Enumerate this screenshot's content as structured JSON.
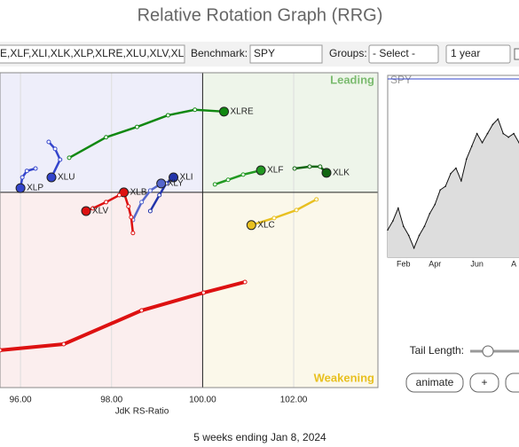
{
  "header": {
    "title": "Relative Rotation Graph (RRG)"
  },
  "toolbar": {
    "symbols": "E,XLF,XLI,XLK,XLP,XLRE,XLU,XLV,XL",
    "benchmark_label": "Benchmark:",
    "benchmark": "SPY",
    "groups_label": "Groups:",
    "groups": "- Select -",
    "period": "1 year"
  },
  "chart_data": [
    {
      "type": "rrg",
      "x_label": "JdK RS-Ratio",
      "quadrants": {
        "leading": "Leading",
        "weakening": "Weakening"
      },
      "xlim": [
        95.55,
        103.85
      ],
      "ylim": [
        93.62,
        103.91
      ],
      "xticks": [
        {
          "value": 96,
          "label": "96.00"
        },
        {
          "value": 98,
          "label": "98.00"
        },
        {
          "value": 100,
          "label": "100.00"
        },
        {
          "value": 102,
          "label": "102.00"
        }
      ],
      "series": [
        {
          "name": "XLRE",
          "color": "#118811",
          "x": [
            97.07,
            97.88,
            98.56,
            99.24,
            99.83,
            100.47
          ],
          "y": [
            101.13,
            101.8,
            102.14,
            102.52,
            102.7,
            102.64
          ]
        },
        {
          "name": "XLF",
          "color": "#229922",
          "x": [
            100.27,
            100.56,
            100.89,
            101.28
          ],
          "y": [
            100.26,
            100.41,
            100.58,
            100.72
          ]
        },
        {
          "name": "XLK",
          "color": "#116611",
          "x": [
            102.02,
            102.35,
            102.58,
            102.72
          ],
          "y": [
            100.78,
            100.84,
            100.84,
            100.64
          ]
        },
        {
          "name": "XLC",
          "color": "#e8c020",
          "x": [
            102.5,
            102.06,
            101.57,
            101.07
          ],
          "y": [
            99.77,
            99.42,
            99.16,
            98.93
          ]
        },
        {
          "name": "XLI",
          "color": "#2233aa",
          "x": [
            98.85,
            99.05,
            99.2,
            99.36
          ],
          "y": [
            99.39,
            99.91,
            100.29,
            100.49
          ]
        },
        {
          "name": "XLY",
          "color": "#5566cc",
          "x": [
            98.47,
            98.66,
            98.85,
            99.09
          ],
          "y": [
            99.1,
            99.68,
            100.06,
            100.29
          ]
        },
        {
          "name": "XLB",
          "color": "#dd1111",
          "x": [
            98.47,
            98.43,
            98.37,
            98.27
          ],
          "y": [
            98.67,
            99.19,
            99.54,
            100
          ]
        },
        {
          "name": "XLV",
          "color": "#dd1111",
          "x": [
            98.17,
            97.88,
            97.59,
            97.44
          ],
          "y": [
            99.91,
            99.68,
            99.48,
            99.39
          ]
        },
        {
          "name": "XLU",
          "color": "#3344cc",
          "x": [
            96.62,
            96.76,
            96.87,
            96.68
          ],
          "y": [
            101.65,
            101.42,
            101.07,
            100.49
          ]
        },
        {
          "name": "XLP",
          "color": "#3344cc",
          "x": [
            96.33,
            96.14,
            96.04,
            96
          ],
          "y": [
            100.78,
            100.7,
            100.49,
            100.14
          ]
        },
        {
          "color": "#dd1111",
          "x": [
            95.55,
            96.95,
            98.66,
            100.02,
            100.93
          ],
          "y": [
            94.84,
            95.04,
            96.14,
            96.72,
            97.07
          ]
        }
      ]
    },
    {
      "type": "area",
      "title": "SPY",
      "color": "#999999",
      "ylim": [
        0,
        100
      ],
      "categories": [
        null,
        null,
        null,
        "Feb",
        null,
        null,
        null,
        null,
        null,
        "Apr",
        null,
        null,
        null,
        null,
        null,
        null,
        null,
        "Jun",
        null,
        null,
        null,
        null,
        null,
        null,
        "A",
        null
      ],
      "values": [
        15,
        20,
        27,
        17,
        12,
        5,
        12,
        17,
        24,
        29,
        37,
        39,
        46,
        49,
        42,
        54,
        61,
        68,
        63,
        68,
        73,
        76,
        68,
        66,
        68,
        63
      ]
    }
  ],
  "controls": {
    "tail_label": "Tail Length:",
    "animate": "animate",
    "plus": "+"
  },
  "footer": "5 weeks ending Jan 8, 2024"
}
